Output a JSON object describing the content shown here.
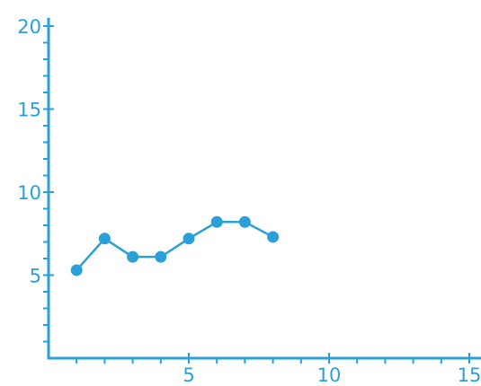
{
  "colors": {
    "accent": "#2a9fd8"
  },
  "chart_data": {
    "type": "line",
    "title": "",
    "xlabel": "",
    "ylabel": "",
    "xlim": [
      0,
      15.5
    ],
    "ylim": [
      0,
      20.5
    ],
    "grid": false,
    "x_ticks": [
      5,
      10,
      15
    ],
    "x_tick_labels": [
      "5",
      "10",
      "15"
    ],
    "x_minor_ticks": [
      1,
      2,
      3,
      4,
      5,
      6,
      7,
      8,
      9,
      10,
      11,
      12,
      13,
      14,
      15
    ],
    "y_ticks": [
      5,
      10,
      15,
      20
    ],
    "y_tick_labels": [
      "5",
      "10",
      "15",
      "20"
    ],
    "y_minor_ticks": [
      1,
      2,
      3,
      4,
      5,
      6,
      7,
      8,
      9,
      10,
      11,
      12,
      13,
      14,
      15,
      16,
      17,
      18,
      19,
      20
    ],
    "series": [
      {
        "x": [
          1,
          2,
          3,
          4,
          5,
          6,
          7,
          8
        ],
        "y": [
          5.3,
          7.2,
          6.1,
          6.1,
          7.2,
          8.2,
          8.2,
          7.3
        ]
      }
    ]
  }
}
